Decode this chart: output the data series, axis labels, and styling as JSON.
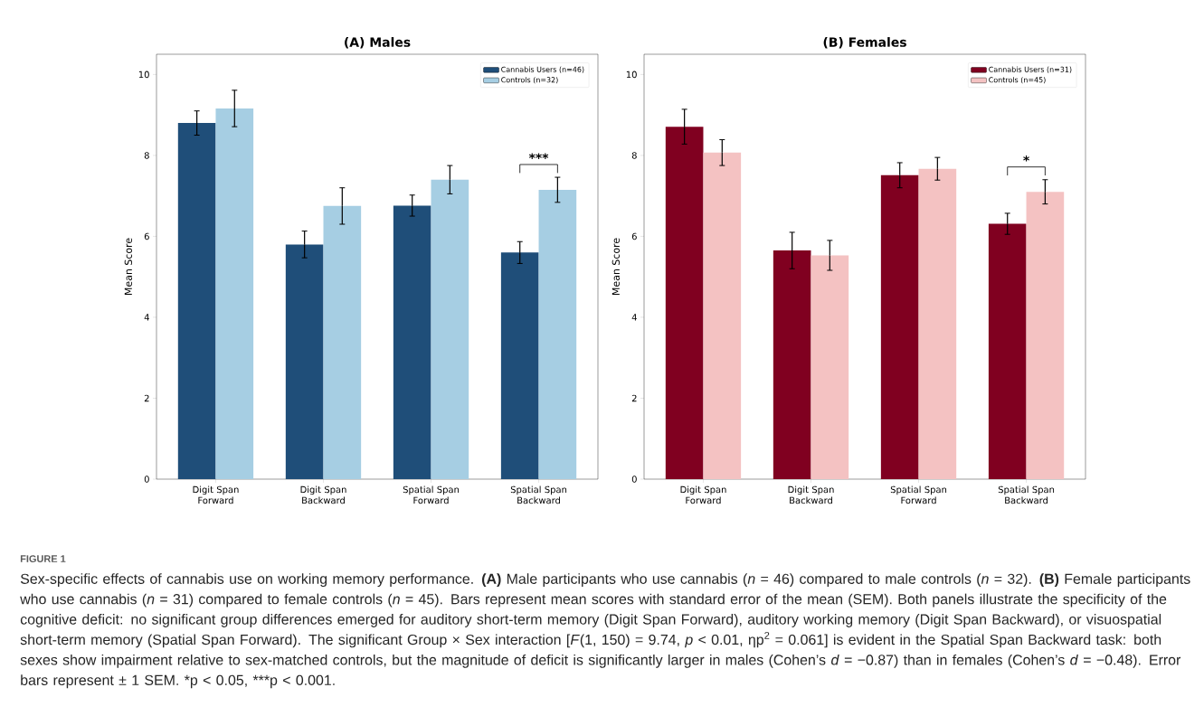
{
  "chart_data": [
    {
      "type": "bar",
      "title": "(A) Males",
      "ylabel": "Mean Score",
      "categories": [
        "Digit Span Forward",
        "Digit Span Backward",
        "Spatial Span Forward",
        "Spatial Span Backward"
      ],
      "series": [
        {
          "name": "Cannabis Users (n=46)",
          "color": "#1f4e79",
          "values": [
            8.8,
            5.8,
            6.76,
            5.6
          ],
          "errors": [
            0.3,
            0.33,
            0.26,
            0.27
          ]
        },
        {
          "name": "Controls (n=32)",
          "color": "#a6cee3",
          "values": [
            9.16,
            6.75,
            7.4,
            7.15
          ],
          "errors": [
            0.45,
            0.45,
            0.35,
            0.31
          ]
        }
      ],
      "ylim": [
        0,
        10.5
      ],
      "yticks": [
        0,
        2,
        4,
        6,
        8,
        10
      ],
      "legend": "top right",
      "annotations": [
        "***",
        "FIGURE 1",
        "Sex-specific effects of cannabis use on working memory performance. **(A)** Male participants who use cannabis (*n* = 46) compared to male controls (*n* = 32). **(B)** Female participants who use cannabis (*n* = 31) compared to female controls (*n* = 45). Bars represent mean scores with standard error of the mean (SEM). Both panels illustrate the specificity of the cognitive deficit: no significant group differences emerged for auditory short-term memory (Digit Span Forward), auditory working memory (Digit Span Backward), or visuospatial short-term memory (Spatial Span Forward). The significant Group × Sex interaction [*F*(1, 150) = 9.74, *p* < 0.01, ηp$^{2}$ = 0.061] is evident in the Spatial Span Backward task: both sexes show impairment relative to sex-matched controls, but the magnitude of deficit is significantly larger in males (Cohen’s *d* = −0.87) than in females (Cohen’s *d* = −0.48).",
        "Error bars represent ± 1 SEM.",
        "*p < 0.05, ***p < 0.001."
      ]
    },
    {
      "type": "bar",
      "title": "(B) Females",
      "ylabel": "Mean Score",
      "categories": [
        "Digit Span Forward",
        "Digit Span Backward",
        "Spatial Span Forward",
        "Spatial Span Backward"
      ],
      "series": [
        {
          "name": "Cannabis Users (n=31)",
          "color": "#800020",
          "values": [
            8.71,
            5.65,
            7.51,
            6.31
          ],
          "errors": [
            0.43,
            0.45,
            0.31,
            0.26
          ]
        },
        {
          "name": "Controls (n=45)",
          "color": "#f4c2c2",
          "values": [
            8.07,
            5.53,
            7.67,
            7.1
          ],
          "errors": [
            0.32,
            0.37,
            0.28,
            0.3
          ]
        }
      ],
      "ylim": [
        0,
        10.5
      ],
      "yticks": [
        0,
        2,
        4,
        6,
        8,
        10
      ],
      "legend": "top right",
      "annotations": [
        "*"
      ]
    }
  ]
}
